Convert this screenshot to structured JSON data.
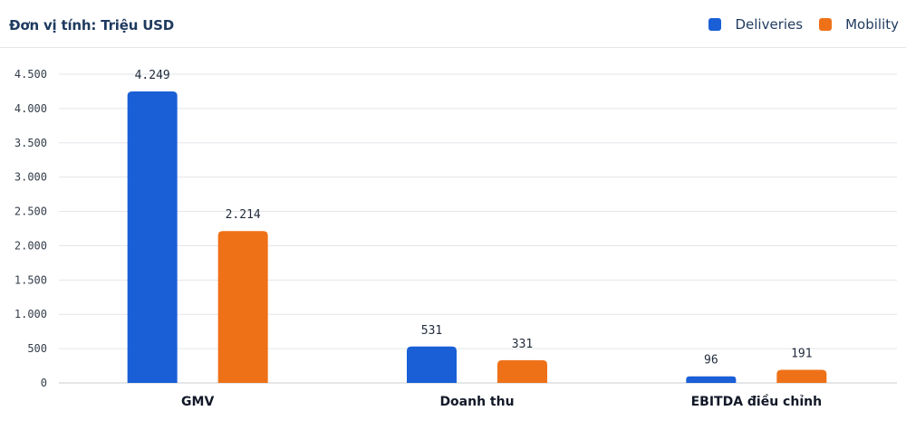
{
  "unit_title": "Đơn vị tính: Triệu USD",
  "legend": [
    {
      "label": "Deliveries",
      "color": "#1a5fd6"
    },
    {
      "label": "Mobility",
      "color": "#ee7118"
    }
  ],
  "chart_data": {
    "type": "bar",
    "categories": [
      "GMV",
      "Doanh thu",
      "EBITDA điều chỉnh"
    ],
    "series": [
      {
        "name": "Deliveries",
        "values": [
          4249,
          531,
          96
        ],
        "value_labels": [
          "4.249",
          "531",
          "96"
        ],
        "color": "#1a5fd6"
      },
      {
        "name": "Mobility",
        "values": [
          2214,
          331,
          191
        ],
        "value_labels": [
          "2.214",
          "331",
          "191"
        ],
        "color": "#ee7118"
      }
    ],
    "ylim": [
      0,
      4500
    ],
    "yticks": [
      0,
      500,
      1000,
      1500,
      2000,
      2500,
      3000,
      3500,
      4000,
      4500
    ],
    "ytick_labels": [
      "0",
      "500",
      "1.000",
      "1.500",
      "2.000",
      "2.500",
      "3.000",
      "3.500",
      "4.000",
      "4.500"
    ],
    "grid": true,
    "legend_position": "top-right"
  }
}
